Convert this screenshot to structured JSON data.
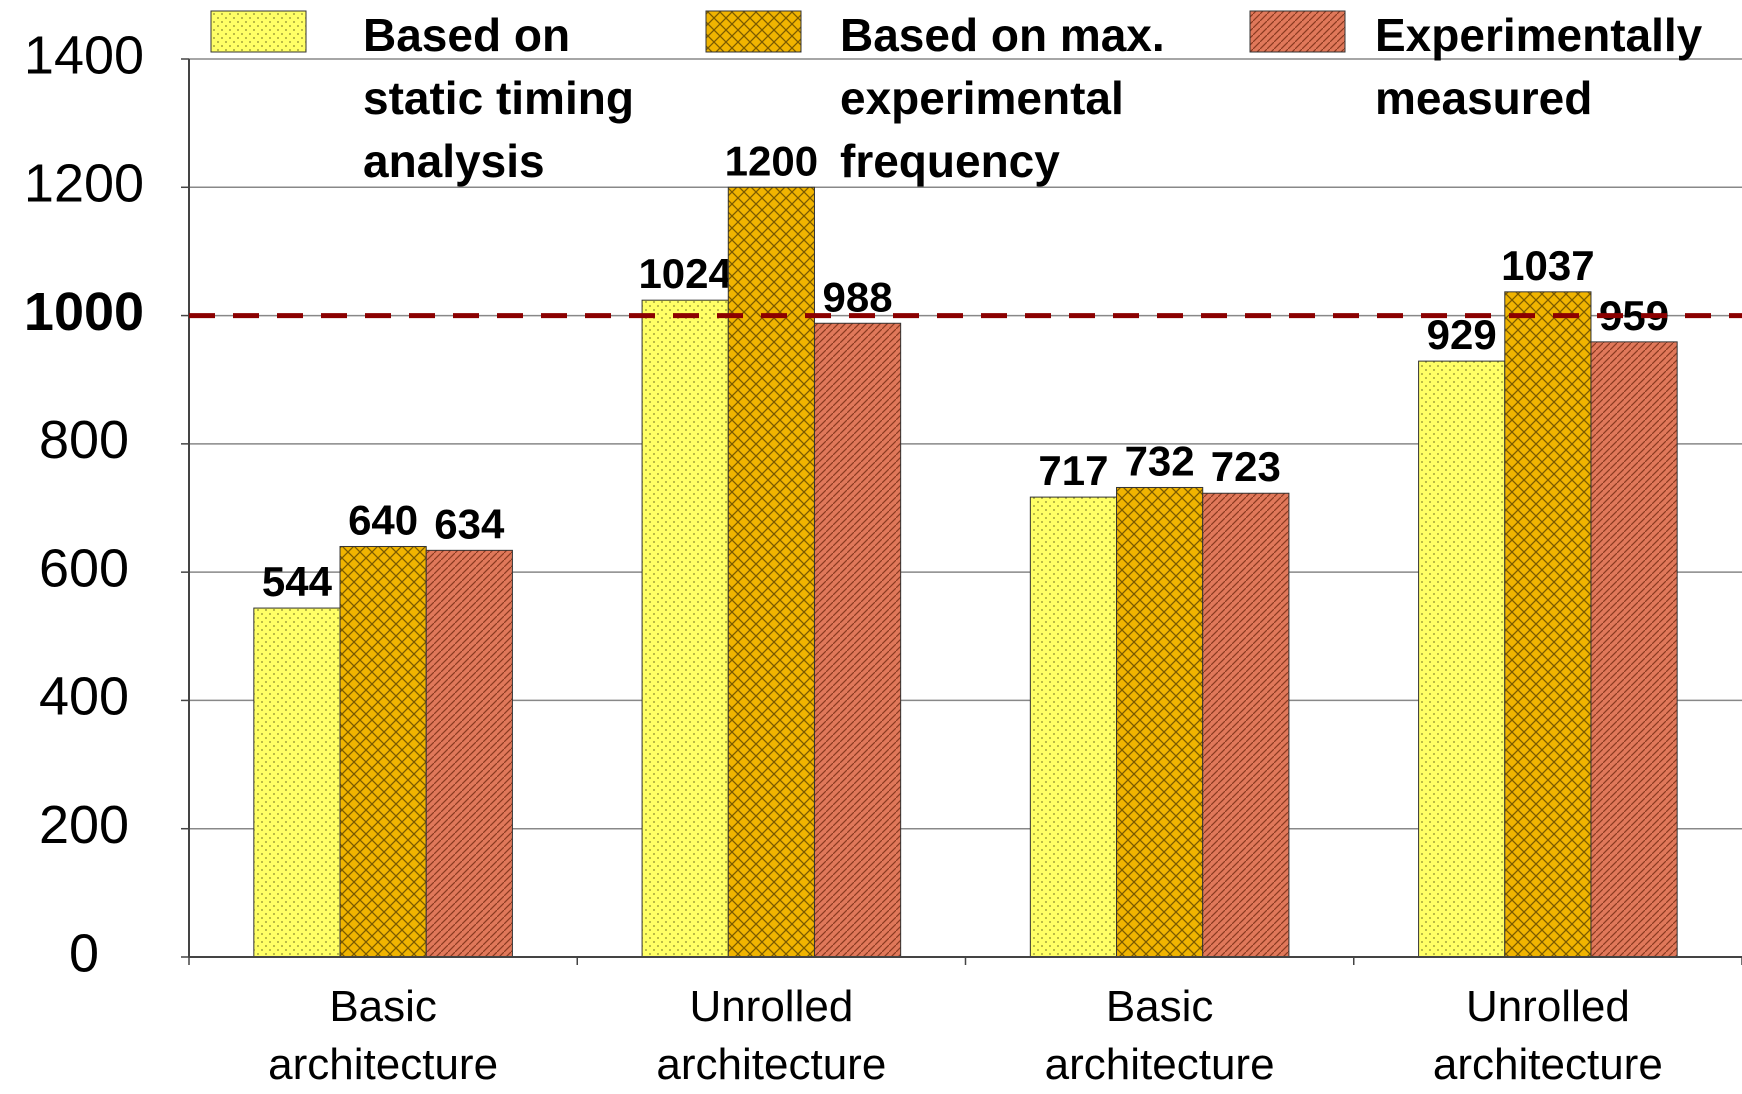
{
  "chart_data": {
    "type": "bar",
    "categories": [
      "Basic architecture",
      "Unrolled architecture",
      "Basic architecture",
      "Unrolled architecture"
    ],
    "series": [
      {
        "name": "Based on static timing analysis",
        "color": "#ffff66",
        "values": [
          544,
          1024,
          717,
          929
        ]
      },
      {
        "name": "Based on max. experimental frequency",
        "color": "#f0b400",
        "values": [
          640,
          1200,
          732,
          1037
        ]
      },
      {
        "name": "Experimentally measured",
        "color": "#e0785a",
        "values": [
          634,
          988,
          723,
          959
        ]
      }
    ],
    "ylim": [
      0,
      1400
    ],
    "yticks": [
      0,
      200,
      400,
      600,
      800,
      1000,
      1200,
      1400
    ],
    "grid": true,
    "reference_line": {
      "value": 1000,
      "color": "#8b0000"
    }
  }
}
